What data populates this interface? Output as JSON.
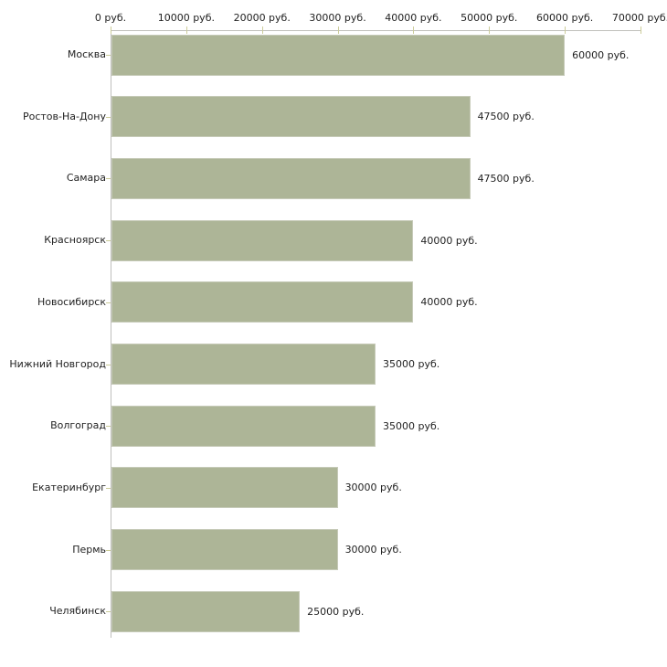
{
  "chart_data": {
    "type": "bar",
    "orientation": "horizontal",
    "title": "",
    "xlabel": "",
    "ylabel": "",
    "unit": "руб.",
    "categories": [
      "Москва",
      "Ростов-На-Дону",
      "Самара",
      "Красноярск",
      "Новосибирск",
      "Нижний Новгород",
      "Волгоград",
      "Екатеринбург",
      "Пермь",
      "Челябинск"
    ],
    "values": [
      60000,
      47500,
      47500,
      40000,
      40000,
      35000,
      35000,
      30000,
      30000,
      25000
    ],
    "value_labels": [
      "60000 руб.",
      "47500 руб.",
      "47500 руб.",
      "40000 руб.",
      "40000 руб.",
      "35000 руб.",
      "35000 руб.",
      "30000 руб.",
      "30000 руб.",
      "25000 руб."
    ],
    "xlim": [
      0,
      70000
    ],
    "x_ticks": [
      0,
      10000,
      20000,
      30000,
      40000,
      50000,
      60000,
      70000
    ],
    "x_tick_labels": [
      "0 руб.",
      "10000 руб.",
      "20000 руб.",
      "30000 руб.",
      "40000 руб.",
      "50000 руб.",
      "60000 руб.",
      "70000 руб."
    ],
    "grid": false,
    "legend": false,
    "colors": {
      "bar_fill": "#adb597",
      "bar_border": "#c6cab8",
      "axis_line": "#c0c0bc",
      "tick_mark": "#cccc99",
      "label_text": "#222222",
      "background": "#ffffff"
    }
  }
}
